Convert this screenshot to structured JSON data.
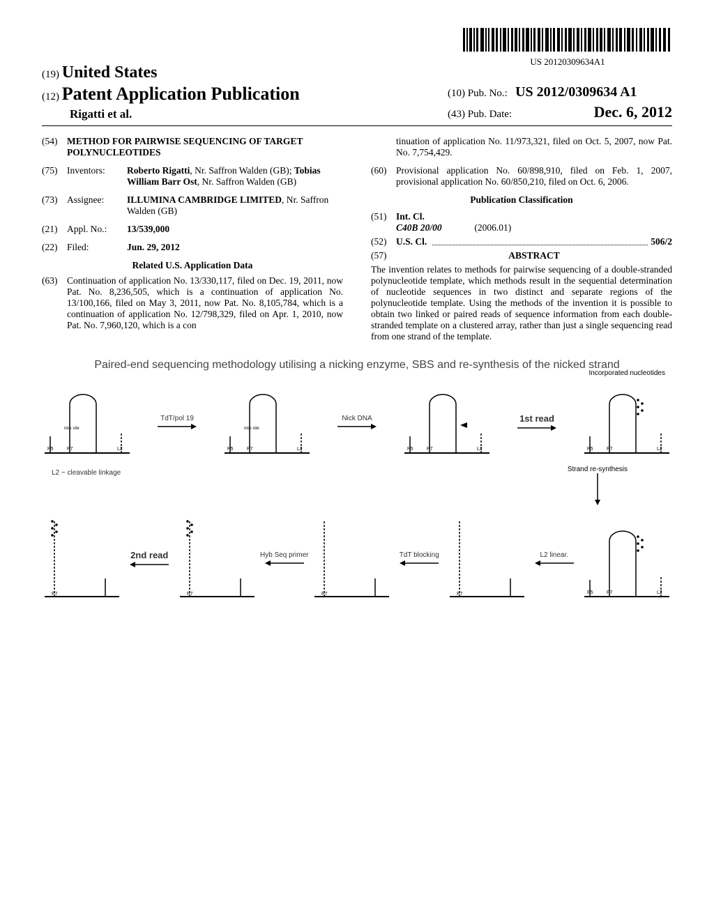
{
  "barcode_text": "US 20120309634A1",
  "header": {
    "country_prefix": "(19)",
    "country": "United States",
    "doc_prefix": "(12)",
    "doc_type": "Patent Application Publication",
    "authors": "Rigatti et al.",
    "pub_no_prefix": "(10)",
    "pub_no_label": "Pub. No.:",
    "pub_no": "US 2012/0309634 A1",
    "pub_date_prefix": "(43)",
    "pub_date_label": "Pub. Date:",
    "pub_date": "Dec. 6, 2012"
  },
  "left": {
    "title_num": "(54)",
    "title": "METHOD FOR PAIRWISE SEQUENCING OF TARGET POLYNUCLEOTIDES",
    "inventors_num": "(75)",
    "inventors_label": "Inventors:",
    "inventors_val": "Roberto Rigatti, Nr. Saffron Walden (GB); Tobias William Barr Ost, Nr. Saffron Walden (GB)",
    "inventor1": "Roberto Rigatti",
    "inventor1_loc": ", Nr. Saffron Walden (GB); ",
    "inventor2": "Tobias William Barr Ost",
    "inventor2_loc": ", Nr. Saffron Walden (GB)",
    "assignee_num": "(73)",
    "assignee_label": "Assignee:",
    "assignee_val1": "ILLUMINA CAMBRIDGE LIMITED",
    "assignee_val2": ", Nr. Saffron Walden (GB)",
    "appl_num": "(21)",
    "appl_label": "Appl. No.:",
    "appl_val": "13/539,000",
    "filed_num": "(22)",
    "filed_label": "Filed:",
    "filed_val": "Jun. 29, 2012",
    "related_head": "Related U.S. Application Data",
    "cont_num": "(63)",
    "cont_text": "Continuation of application No. 13/330,117, filed on Dec. 19, 2011, now Pat. No. 8,236,505, which is a continuation of application No. 13/100,166, filed on May 3, 2011, now Pat. No. 8,105,784, which is a continuation of application No. 12/798,329, filed on Apr. 1, 2010, now Pat. No. 7,960,120, which is a con"
  },
  "right": {
    "cont_text2": "tinuation of application No. 11/973,321, filed on Oct. 5, 2007, now Pat. No. 7,754,429.",
    "prov_num": "(60)",
    "prov_text": "Provisional application No. 60/898,910, filed on Feb. 1, 2007, provisional application No. 60/850,210, filed on Oct. 6, 2006.",
    "class_head": "Publication Classification",
    "intcl_num": "(51)",
    "intcl_label": "Int. Cl.",
    "intcl_code": "C40B 20/00",
    "intcl_year": "(2006.01)",
    "uscl_num": "(52)",
    "uscl_label": "U.S. Cl.",
    "uscl_val": "506/2",
    "abs_num": "(57)",
    "abs_head": "ABSTRACT",
    "abs_text": "The invention relates to methods for pairwise sequencing of a double-stranded polynucleotide template, which methods result in the sequential determination of nucleotide sequences in two distinct and separate regions of the polynucleotide template. Using the methods of the invention it is possible to obtain two linked or paired reads of sequence information from each double-stranded template on a clustered array, rather than just a single sequencing read from one strand of the template."
  },
  "figure": {
    "title": "Paired-end sequencing methodology utilising a nicking enzyme, SBS and re-synthesis of the nicked strand",
    "corner": "Incorporated nucleotides",
    "row1": {
      "a1": "TdT/pol 19",
      "a2": "Nick DNA",
      "a3": "1st read"
    },
    "note_l2": "L2 ~ cleavable linkage",
    "side": "Strand re-synthesis",
    "row2": {
      "a1": "2nd read",
      "a2": "Hyb Seq primer",
      "a3": "TdT blocking",
      "a4": "L2 linear."
    },
    "labels": {
      "p5": "P5",
      "p7": "P7",
      "l2": "L2",
      "nick": "nick site"
    }
  }
}
